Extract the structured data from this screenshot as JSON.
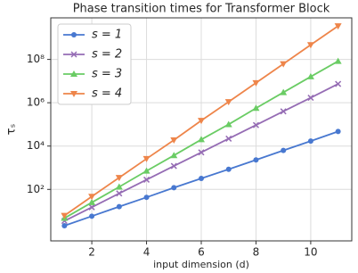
{
  "chart_data": {
    "type": "line",
    "title": "Phase transition times for Transformer Block",
    "x_label": "input dimension (d)",
    "y_label": "τₛ",
    "x": [
      1,
      2,
      3,
      4,
      5,
      6,
      7,
      8,
      9,
      10,
      11
    ],
    "series": [
      {
        "name": "s = 1",
        "color": "#4878d0",
        "marker": "o",
        "values": [
          2.1,
          5.8,
          16,
          43,
          120,
          320,
          850,
          2300,
          6300,
          17000,
          47000
        ]
      },
      {
        "name": "s = 2",
        "color": "#956cb4",
        "marker": "x",
        "values": [
          3.5,
          15,
          65,
          280,
          1200,
          5100,
          22000,
          93000,
          400000,
          1700000,
          7400000
        ]
      },
      {
        "name": "s = 3",
        "color": "#6acc64",
        "marker": "^",
        "values": [
          4.7,
          25,
          130,
          710,
          3700,
          20000,
          100000,
          560000,
          3000000,
          16000000,
          83000000
        ]
      },
      {
        "name": "s = 4",
        "color": "#ee854a",
        "marker": "v",
        "values": [
          6.2,
          47,
          350,
          2600,
          19000,
          150000,
          1100000,
          8300000,
          62000000,
          470000000,
          3500000000
        ]
      }
    ],
    "xlim": [
      0.5,
      11.5
    ],
    "xticks": [
      2,
      4,
      6,
      8,
      10
    ],
    "ylim": [
      0.42,
      8300000000
    ],
    "y_scale": "log",
    "yticks": [
      {
        "value": 100,
        "label": "10²"
      },
      {
        "value": 10000,
        "label": "10⁴"
      },
      {
        "value": 1000000,
        "label": "10⁶"
      },
      {
        "value": 100000000,
        "label": "10⁸"
      }
    ],
    "grid": true,
    "legend": "upper left"
  }
}
